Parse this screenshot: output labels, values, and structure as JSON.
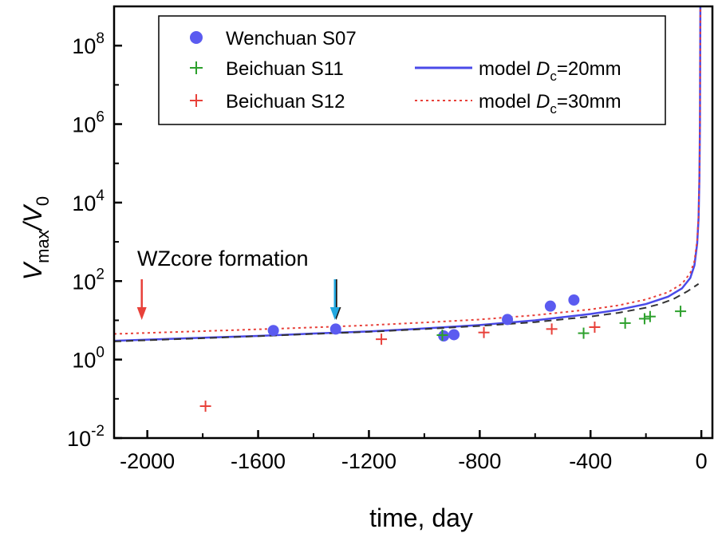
{
  "chart_data": {
    "type": "scatter",
    "xlabel": "time, day",
    "ylabel": {
      "main": "V",
      "sub1": "max",
      "slash": "/V",
      "sub2": "0"
    },
    "xlim": [
      -2120,
      40
    ],
    "ylim_log10": [
      -2,
      9
    ],
    "y_scale": "log",
    "grid": false,
    "x_ticks": [
      {
        "value": -2000,
        "label": "-2000"
      },
      {
        "value": -1600,
        "label": "-1600"
      },
      {
        "value": -1200,
        "label": "-1200"
      },
      {
        "value": -800,
        "label": "-800"
      },
      {
        "value": -400,
        "label": "-400"
      },
      {
        "value": 0,
        "label": "0"
      }
    ],
    "y_ticks": [
      {
        "exp": -2,
        "base": "10",
        "sup": "-2"
      },
      {
        "exp": 0,
        "base": "10",
        "sup": "0"
      },
      {
        "exp": 2,
        "base": "10",
        "sup": "2"
      },
      {
        "exp": 4,
        "base": "10",
        "sup": "4"
      },
      {
        "exp": 6,
        "base": "10",
        "sup": "6"
      },
      {
        "exp": 8,
        "base": "10",
        "sup": "8"
      }
    ],
    "legend": {
      "placement": "top-left",
      "entries": [
        {
          "key": "wenchuan",
          "label": "Wenchuan S07",
          "marker": "circle",
          "color": "#5b5bf0"
        },
        {
          "key": "beichuan11",
          "label": "Beichuan S11",
          "marker": "plus",
          "color": "#2ca02c"
        },
        {
          "key": "beichuan12",
          "label": "Beichuan S12",
          "marker": "plus",
          "color": "#e8413a"
        },
        {
          "key": "model20",
          "label": "model ",
          "label_italic": "D",
          "label_sub": "c",
          "label_tail": "=20mm",
          "marker": "solid-line",
          "color": "#4a4ae8"
        },
        {
          "key": "model30",
          "label": "model ",
          "label_italic": "D",
          "label_sub": "c",
          "label_tail": "=30mm",
          "marker": "dotted-line",
          "color": "#e8413a"
        }
      ]
    },
    "series": [
      {
        "name": "Wenchuan S07",
        "kind": "points",
        "marker": "circle",
        "color": "#5b5bf0",
        "points": [
          [
            -1545,
            5.5
          ],
          [
            -1320,
            6.0
          ],
          [
            -930,
            4.0
          ],
          [
            -893,
            4.3
          ],
          [
            -700,
            10.5
          ],
          [
            -545,
            23
          ],
          [
            -460,
            33
          ]
        ]
      },
      {
        "name": "Beichuan S11",
        "kind": "points",
        "marker": "plus",
        "color": "#2ca02c",
        "points": [
          [
            -935,
            4.2
          ],
          [
            -425,
            4.7
          ],
          [
            -275,
            8.5
          ],
          [
            -205,
            11
          ],
          [
            -185,
            12.5
          ],
          [
            -75,
            17
          ]
        ]
      },
      {
        "name": "Beichuan S12",
        "kind": "points",
        "marker": "plus",
        "color": "#e8413a",
        "points": [
          [
            -1790,
            0.065
          ],
          [
            -1155,
            3.3
          ],
          [
            -785,
            4.9
          ],
          [
            -540,
            6.0
          ],
          [
            -385,
            6.7
          ]
        ]
      },
      {
        "name": "model Dc=20mm",
        "kind": "line",
        "style": "solid",
        "color": "#4a4ae8",
        "points": [
          [
            -2120,
            3.0
          ],
          [
            -1800,
            3.6
          ],
          [
            -1600,
            4.0
          ],
          [
            -1400,
            4.6
          ],
          [
            -1200,
            5.2
          ],
          [
            -1000,
            6.2
          ],
          [
            -800,
            7.6
          ],
          [
            -600,
            10
          ],
          [
            -400,
            14.5
          ],
          [
            -300,
            18.5
          ],
          [
            -200,
            26
          ],
          [
            -120,
            40
          ],
          [
            -70,
            65
          ],
          [
            -40,
            120
          ],
          [
            -25,
            250
          ],
          [
            -15,
            900
          ],
          [
            -10,
            4000
          ],
          [
            -7,
            40000
          ],
          [
            -5,
            1000000
          ],
          [
            -4,
            100000000
          ],
          [
            -3.5,
            1000000000
          ]
        ]
      },
      {
        "name": "model Dc=30mm",
        "kind": "line",
        "style": "dotted",
        "color": "#e8413a",
        "points": [
          [
            -2120,
            4.5
          ],
          [
            -1800,
            5.3
          ],
          [
            -1600,
            5.9
          ],
          [
            -1400,
            6.6
          ],
          [
            -1200,
            7.5
          ],
          [
            -1000,
            8.8
          ],
          [
            -800,
            10.5
          ],
          [
            -600,
            13.5
          ],
          [
            -400,
            19
          ],
          [
            -300,
            24
          ],
          [
            -200,
            34
          ],
          [
            -120,
            52
          ],
          [
            -70,
            85
          ],
          [
            -40,
            160
          ],
          [
            -25,
            320
          ],
          [
            -15,
            1100
          ],
          [
            -10,
            4500
          ],
          [
            -7,
            45000
          ],
          [
            -5,
            1000000
          ],
          [
            -4,
            100000000
          ],
          [
            -3.5,
            1000000000
          ]
        ]
      },
      {
        "kind": "line",
        "style": "dashed",
        "color": "#333333",
        "points": [
          [
            -2120,
            2.9
          ],
          [
            -1800,
            3.5
          ],
          [
            -1600,
            3.95
          ],
          [
            -1400,
            4.5
          ],
          [
            -1200,
            5.1
          ],
          [
            -1000,
            6.0
          ],
          [
            -800,
            7.2
          ],
          [
            -600,
            9.0
          ],
          [
            -400,
            12.5
          ],
          [
            -300,
            15.5
          ],
          [
            -200,
            21
          ],
          [
            -150,
            26
          ],
          [
            -100,
            35
          ],
          [
            -50,
            55
          ],
          [
            -10,
            85
          ]
        ]
      }
    ],
    "annotations": [
      {
        "text": "WZcore formation"
      }
    ],
    "arrows": [
      {
        "x": -2020,
        "color": "#e8413a"
      },
      {
        "x": -1318,
        "color": "#1a1a1a"
      },
      {
        "x": -1323,
        "color": "#22a8e0"
      }
    ]
  }
}
